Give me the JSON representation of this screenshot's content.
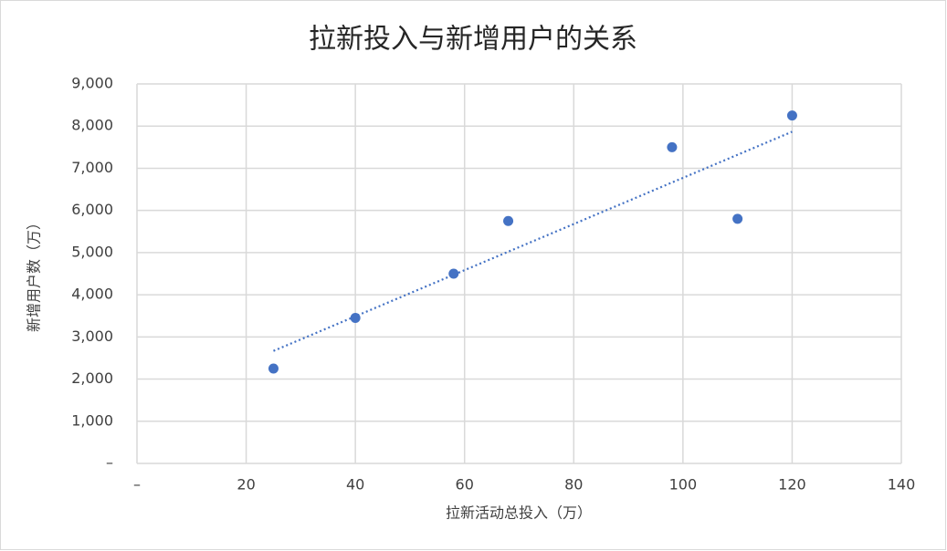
{
  "chart_data": {
    "type": "scatter",
    "title": "拉新投入与新增用户的关系",
    "x_label": "拉新活动总投入（万）",
    "y_label": "新增用户数（万）",
    "color": "#4472c4",
    "grid": true,
    "trendline": "linear",
    "x": [
      25,
      40,
      58,
      68,
      98,
      110,
      120
    ],
    "values": [
      2250,
      3450,
      4500,
      5750,
      7500,
      5800,
      8250
    ],
    "xlim": [
      0,
      140
    ],
    "xticks": [
      {
        "value": 0,
        "label": "–"
      },
      20,
      40,
      60,
      80,
      100,
      120,
      140
    ],
    "ylim": [
      0,
      9000
    ],
    "yticks": [
      {
        "value": 0,
        "label": "–"
      },
      {
        "value": 1000,
        "label": "1,000"
      },
      {
        "value": 2000,
        "label": "2,000"
      },
      {
        "value": 3000,
        "label": "3,000"
      },
      {
        "value": 4000,
        "label": "4,000"
      },
      {
        "value": 5000,
        "label": "5,000"
      },
      {
        "value": 6000,
        "label": "6,000"
      },
      {
        "value": 7000,
        "label": "7,000"
      },
      {
        "value": 8000,
        "label": "8,000"
      },
      {
        "value": 9000,
        "label": "9,000"
      }
    ]
  }
}
